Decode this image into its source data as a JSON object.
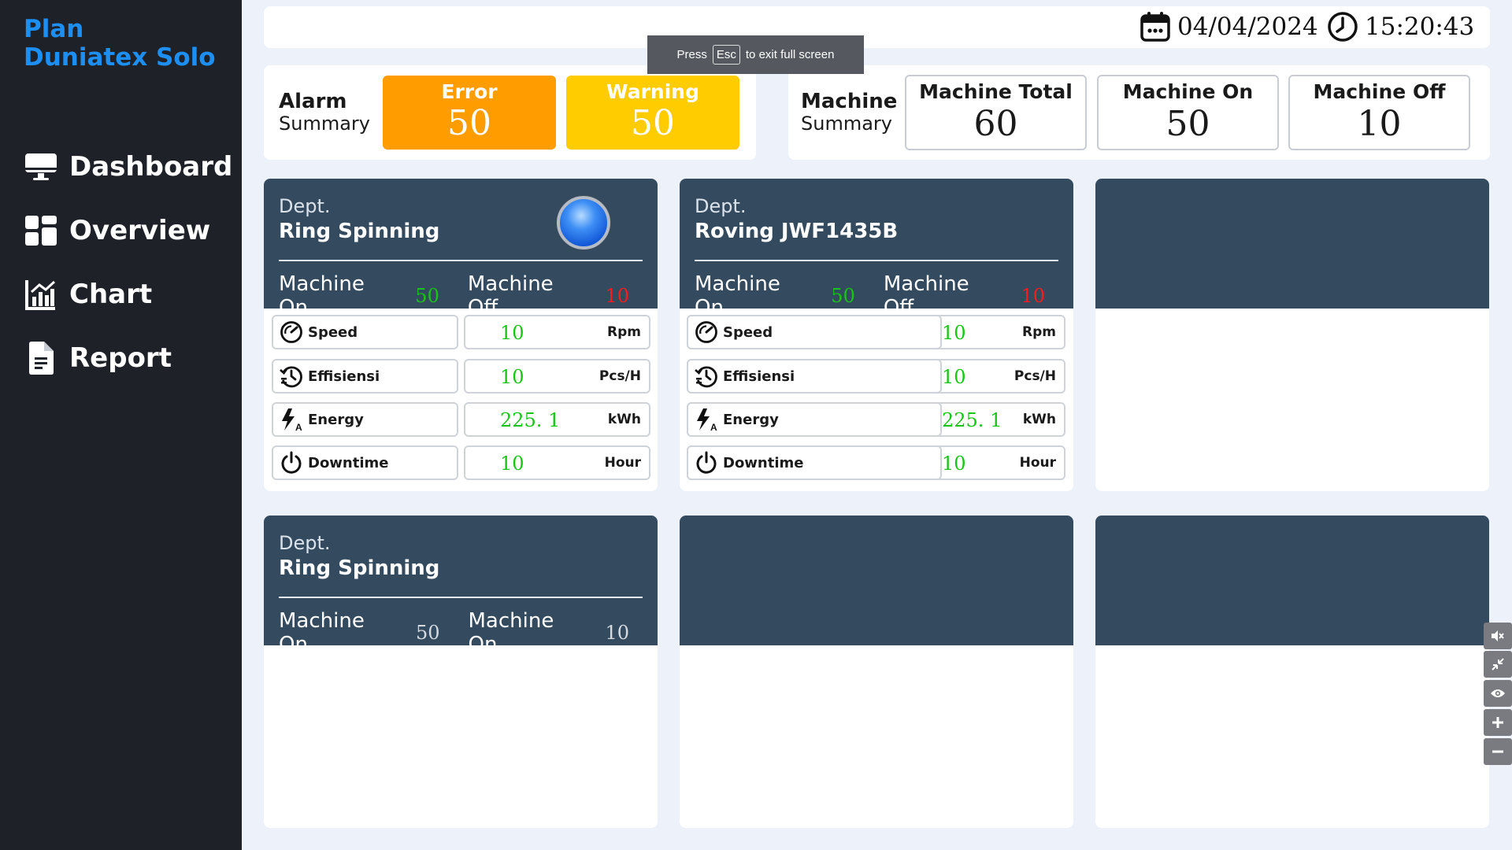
{
  "brand": {
    "line1": "Plan",
    "line2": "Duniatex Solo"
  },
  "nav": [
    {
      "label": "Dashboard",
      "icon": "monitor-icon"
    },
    {
      "label": "Overview",
      "icon": "grid-icon"
    },
    {
      "label": "Chart",
      "icon": "chart-icon"
    },
    {
      "label": "Report",
      "icon": "report-icon"
    }
  ],
  "topbar": {
    "date": "04/04/2024",
    "time": "15:20:43"
  },
  "toast": {
    "press": "Press",
    "key": "Esc",
    "rest": "to exit full screen"
  },
  "alarm": {
    "title": "Alarm",
    "subtitle": "Summary",
    "error_label": "Error",
    "error_value": "50",
    "warning_label": "Warning",
    "warning_value": "50",
    "error_color": "#ff9c00",
    "warning_color": "#ffcc00"
  },
  "machine": {
    "title": "Machine",
    "subtitle": "Summary",
    "total_label": "Machine Total",
    "total_value": "60",
    "on_label": "Machine On",
    "on_value": "50",
    "off_label": "Machine Off",
    "off_value": "10"
  },
  "panels": [
    {
      "dept": "Dept.",
      "name": "Ring Spinning",
      "on_label": "Machine On",
      "on_value": "50",
      "off_label": "Machine Off",
      "off_value": "10",
      "metrics": [
        {
          "label": "Speed",
          "icon": "speedometer-icon",
          "value": "10",
          "unit": "Rpm"
        },
        {
          "label": "Effisiensi",
          "icon": "history-icon",
          "value": "10",
          "unit": "Pcs/H"
        },
        {
          "label": "Energy",
          "icon": "energy-icon",
          "value": "225. 1",
          "unit": "kWh"
        },
        {
          "label": "Downtime",
          "icon": "power-icon",
          "value": "10",
          "unit": "Hour"
        }
      ]
    },
    {
      "dept": "Dept.",
      "name": "Roving JWF1435B",
      "on_label": "Machine On",
      "on_value": "50",
      "off_label": "Machine Off",
      "off_value": "10",
      "metrics": [
        {
          "label": "Speed",
          "icon": "speedometer-icon",
          "value": "10",
          "unit": "Rpm"
        },
        {
          "label": "Effisiensi",
          "icon": "history-icon",
          "value": "10",
          "unit": "Pcs/H"
        },
        {
          "label": "Energy",
          "icon": "energy-icon",
          "value": "225. 1",
          "unit": "kWh"
        },
        {
          "label": "Downtime",
          "icon": "power-icon",
          "value": "10",
          "unit": "Hour"
        }
      ]
    },
    {
      "dept": "Dept.",
      "name": "Ring Spinning",
      "on_label": "Machine On",
      "on_value": "50",
      "off_label": "Machine On",
      "off_value": "10"
    }
  ],
  "controls": [
    "mute-icon",
    "collapse-icon",
    "eye-icon",
    "plus-icon",
    "minus-icon"
  ]
}
